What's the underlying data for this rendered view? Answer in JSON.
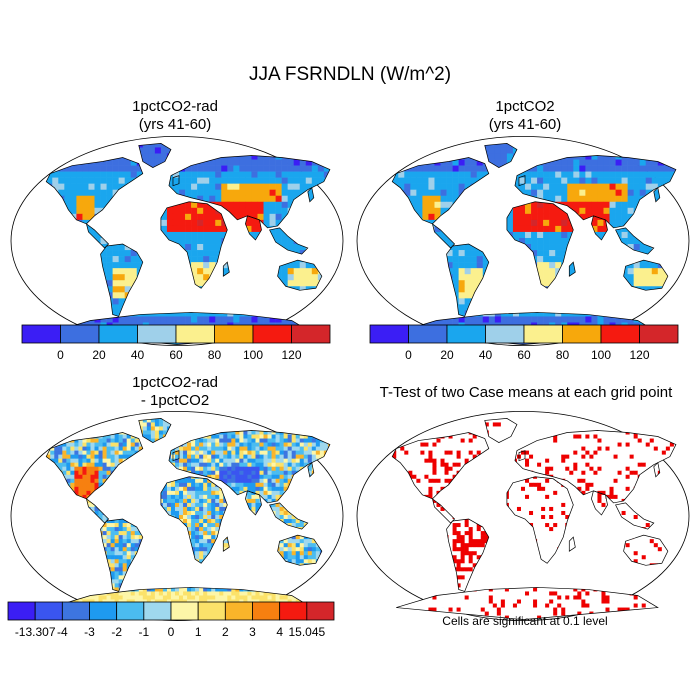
{
  "title": "JJA FSRNDLN (W/m^2)",
  "panels": {
    "top_left": {
      "line1": "1pctCO2-rad",
      "line2": "(yrs 41-60)"
    },
    "top_right": {
      "line1": "1pctCO2",
      "line2": "(yrs 41-60)"
    },
    "bottom_left": {
      "line1": "1pctCO2-rad",
      "line2": "- 1pctCO2"
    },
    "bottom_right": {
      "line1": "T-Test of two Case means at each grid point"
    }
  },
  "colorbars": {
    "abs": {
      "labels": [
        "0",
        "20",
        "40",
        "60",
        "80",
        "100",
        "120"
      ],
      "colors": [
        "#3b1ef5",
        "#3d6fe0",
        "#1aa6ee",
        "#9fd0ea",
        "#fbf08e",
        "#f7a80c",
        "#f51a10",
        "#d4262a"
      ]
    },
    "diff": {
      "labels": [
        "-13.307",
        "-4",
        "-3",
        "-2",
        "-1",
        "0",
        "1",
        "2",
        "3",
        "4",
        "15.045"
      ],
      "colors": [
        "#3b1ef5",
        "#3a55f0",
        "#3d75e0",
        "#1e9af0",
        "#4bbcf0",
        "#9fd8ee",
        "#fdf6a8",
        "#fbe26a",
        "#f9b52a",
        "#f78010",
        "#f51a10",
        "#d4262a"
      ]
    }
  },
  "significance_note": "Cells are significant at 0.1 level",
  "significance_color": "#ee0000"
}
